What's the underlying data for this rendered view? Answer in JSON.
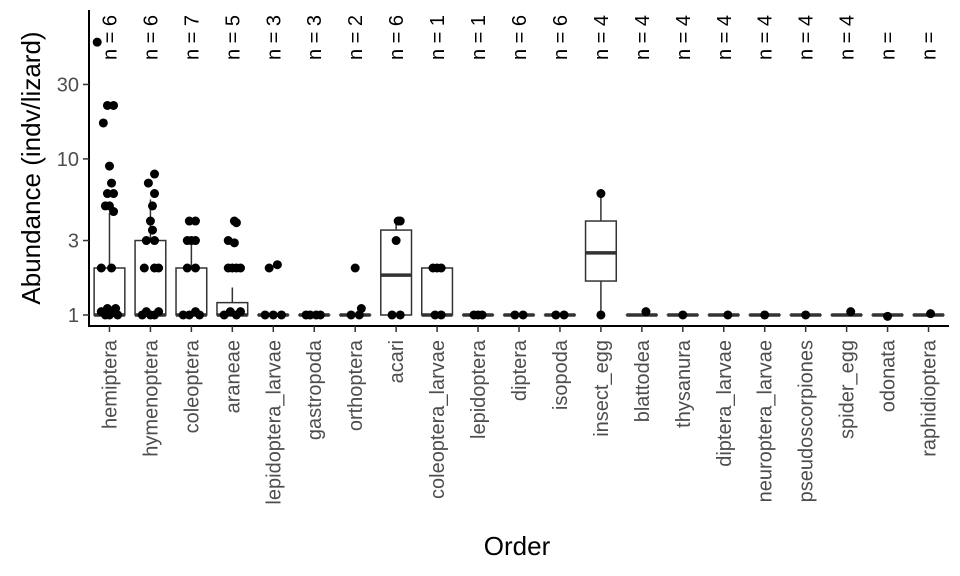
{
  "chart_data": {
    "type": "boxplot",
    "xlabel": "Order",
    "ylabel": "Abundance (indv/lizard)",
    "yscale": "log",
    "ylim": [
      0.85,
      90
    ],
    "yticks": [
      1,
      3,
      10,
      30
    ],
    "ytick_labels": [
      "1",
      "3",
      "10",
      "30"
    ],
    "grid": false,
    "categories": [
      "hemiptera",
      "hymenoptera",
      "coleoptera",
      "araneae",
      "lepidoptera_larvae",
      "gastropoda",
      "orthoptera",
      "acari",
      "coleoptera_larvae",
      "lepidoptera",
      "diptera",
      "isopoda",
      "insect_egg",
      "blattodea",
      "thysanura",
      "diptera_larvae",
      "neuroptera_larvae",
      "pseudoscorpiones",
      "spider_egg",
      "odonata",
      "raphidioptera"
    ],
    "n_labels": [
      "n = 6",
      "n = 6",
      "n = 7",
      "n = 5",
      "n = 3",
      "n = 3",
      "n = 2",
      "n = 6",
      "n = 1",
      "n = 1",
      "n = 6",
      "n = 6",
      "n = 4",
      "n = 4",
      "n = 4",
      "n = 4",
      "n = 4",
      "n = 4",
      "n = 4",
      "n =",
      "n ="
    ],
    "boxes": [
      {
        "lower": 1,
        "q1": 1,
        "median": 1,
        "q3": 2,
        "upper": 4.5
      },
      {
        "lower": 1,
        "q1": 1,
        "median": 1,
        "q3": 3,
        "upper": 5.5
      },
      {
        "lower": 1,
        "q1": 1,
        "median": 1,
        "q3": 2,
        "upper": 3
      },
      {
        "lower": 1,
        "q1": 1,
        "median": 1,
        "q3": 1.2,
        "upper": 1.5
      },
      {
        "lower": 1,
        "q1": 1,
        "median": 1,
        "q3": 1,
        "upper": 1
      },
      {
        "lower": 1,
        "q1": 1,
        "median": 1,
        "q3": 1,
        "upper": 1
      },
      {
        "lower": 1,
        "q1": 1,
        "median": 1,
        "q3": 1,
        "upper": 1
      },
      {
        "lower": 1,
        "q1": 1,
        "median": 1.8,
        "q3": 3.5,
        "upper": 4
      },
      {
        "lower": 1,
        "q1": 1,
        "median": 1,
        "q3": 2,
        "upper": 2
      },
      {
        "lower": 1,
        "q1": 1,
        "median": 1,
        "q3": 1,
        "upper": 1
      },
      {
        "lower": 1,
        "q1": 1,
        "median": 1,
        "q3": 1,
        "upper": 1
      },
      {
        "lower": 1,
        "q1": 1,
        "median": 1,
        "q3": 1,
        "upper": 1
      },
      {
        "lower": 1,
        "q1": 1.65,
        "median": 2.5,
        "q3": 4,
        "upper": 6
      },
      {
        "lower": 1,
        "q1": 1,
        "median": 1,
        "q3": 1,
        "upper": 1
      },
      {
        "lower": 1,
        "q1": 1,
        "median": 1,
        "q3": 1,
        "upper": 1
      },
      {
        "lower": 1,
        "q1": 1,
        "median": 1,
        "q3": 1,
        "upper": 1
      },
      {
        "lower": 1,
        "q1": 1,
        "median": 1,
        "q3": 1,
        "upper": 1
      },
      {
        "lower": 1,
        "q1": 1,
        "median": 1,
        "q3": 1,
        "upper": 1
      },
      {
        "lower": 1,
        "q1": 1,
        "median": 1,
        "q3": 1,
        "upper": 1
      },
      {
        "lower": 1,
        "q1": 1,
        "median": 1,
        "q3": 1,
        "upper": 1
      },
      {
        "lower": 1,
        "q1": 1,
        "median": 1,
        "q3": 1,
        "upper": 1
      }
    ],
    "points": [
      [
        [
          -0.3,
          56
        ],
        [
          -0.05,
          22
        ],
        [
          0.1,
          22
        ],
        [
          -0.15,
          17
        ],
        [
          0,
          9
        ],
        [
          0.05,
          7
        ],
        [
          -0.05,
          6
        ],
        [
          0.1,
          6
        ],
        [
          0,
          5
        ],
        [
          -0.1,
          5
        ],
        [
          0.1,
          4.6
        ],
        [
          -0.2,
          2
        ],
        [
          0.05,
          2
        ],
        [
          -0.2,
          1.05
        ],
        [
          -0.1,
          1
        ],
        [
          0,
          1
        ],
        [
          0.1,
          1.05
        ],
        [
          0.2,
          1
        ],
        [
          -0.05,
          1.1
        ],
        [
          0.15,
          1.1
        ]
      ],
      [
        [
          0.1,
          8
        ],
        [
          -0.05,
          7
        ],
        [
          0.1,
          6
        ],
        [
          0.05,
          5
        ],
        [
          0,
          4
        ],
        [
          -0.1,
          3
        ],
        [
          0.1,
          3
        ],
        [
          0.05,
          3.5
        ],
        [
          -0.15,
          2
        ],
        [
          0.1,
          2
        ],
        [
          0.2,
          2
        ],
        [
          -0.2,
          1
        ],
        [
          -0.1,
          1.05
        ],
        [
          0,
          1
        ],
        [
          0.1,
          1
        ],
        [
          0.2,
          1.05
        ]
      ],
      [
        [
          0.1,
          4
        ],
        [
          -0.05,
          4
        ],
        [
          0,
          3
        ],
        [
          0.1,
          3
        ],
        [
          -0.1,
          3
        ],
        [
          0.1,
          2
        ],
        [
          -0.1,
          2
        ],
        [
          -0.2,
          1
        ],
        [
          -0.05,
          1
        ],
        [
          0.1,
          1.05
        ],
        [
          0.2,
          1
        ]
      ],
      [
        [
          0.05,
          4
        ],
        [
          0.1,
          3.9
        ],
        [
          -0.1,
          3
        ],
        [
          0.05,
          2.9
        ],
        [
          -0.1,
          2
        ],
        [
          0,
          2
        ],
        [
          0.1,
          2
        ],
        [
          0.2,
          2
        ],
        [
          -0.2,
          1
        ],
        [
          -0.05,
          1.05
        ],
        [
          0.1,
          1
        ],
        [
          0.2,
          1.05
        ]
      ],
      [
        [
          -0.1,
          2
        ],
        [
          0.1,
          2.1
        ],
        [
          -0.2,
          1
        ],
        [
          0,
          1
        ],
        [
          0.2,
          1
        ]
      ],
      [
        [
          -0.1,
          1
        ],
        [
          0.05,
          1
        ],
        [
          0.15,
          1
        ],
        [
          -0.2,
          1
        ]
      ],
      [
        [
          0,
          2
        ],
        [
          -0.1,
          1
        ],
        [
          0.1,
          1
        ],
        [
          0.15,
          1.1
        ]
      ],
      [
        [
          0.05,
          4
        ],
        [
          0.1,
          4
        ],
        [
          0,
          3
        ],
        [
          -0.1,
          1
        ],
        [
          0.1,
          1
        ]
      ],
      [
        [
          -0.1,
          2
        ],
        [
          0,
          2
        ],
        [
          0.1,
          2
        ],
        [
          -0.05,
          1
        ],
        [
          0.1,
          1
        ]
      ],
      [
        [
          -0.1,
          1
        ],
        [
          0,
          1
        ],
        [
          0.1,
          1
        ]
      ],
      [
        [
          -0.1,
          1
        ],
        [
          0.1,
          1
        ]
      ],
      [
        [
          -0.1,
          1
        ],
        [
          0.1,
          1
        ]
      ],
      [
        [
          0,
          6
        ],
        [
          0,
          1
        ]
      ],
      [
        [
          0.1,
          1.05
        ]
      ],
      [
        [
          0,
          1
        ]
      ],
      [
        [
          0.1,
          1
        ]
      ],
      [
        [
          0,
          1
        ]
      ],
      [
        [
          0,
          1
        ]
      ],
      [
        [
          0.1,
          1.05
        ]
      ],
      [
        [
          0,
          0.98
        ]
      ],
      [
        [
          0.05,
          1.02
        ]
      ]
    ]
  }
}
